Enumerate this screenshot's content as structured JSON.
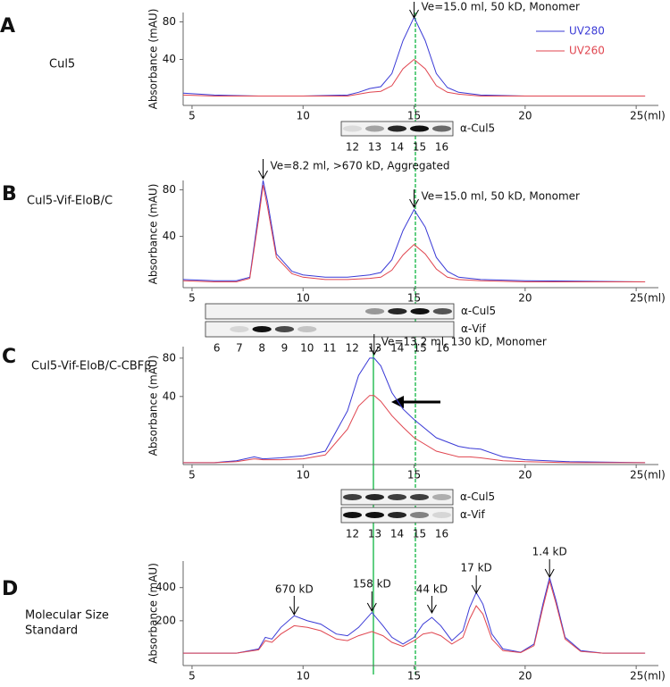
{
  "chart_data": [
    {
      "type": "line",
      "label": "A",
      "name": [
        "Cul5"
      ],
      "ylabel": "Absorbance (mAU)",
      "legend": "upper right",
      "x": [
        4.6,
        6,
        8,
        10,
        12,
        12.5,
        13,
        13.5,
        14,
        14.5,
        15,
        15.5,
        16,
        16.5,
        17,
        18,
        20,
        22,
        25.4
      ],
      "series": [
        {
          "name": "UV280",
          "color": "#3a3ad6",
          "values": [
            4,
            2,
            1,
            1,
            2,
            5,
            9,
            11,
            25,
            60,
            85,
            60,
            25,
            10,
            5,
            2,
            1,
            1,
            1
          ]
        },
        {
          "name": "UV260",
          "color": "#e0454f",
          "values": [
            2,
            1,
            1,
            1,
            1,
            3,
            5,
            6,
            12,
            30,
            40,
            30,
            12,
            5,
            3,
            1,
            1,
            1,
            1
          ]
        }
      ],
      "xlim": [
        4.6,
        26
      ],
      "xticks": [
        5,
        10,
        15,
        20,
        {
          "value": 25,
          "label": "25(ml)"
        }
      ],
      "ylim": [
        -9,
        90
      ],
      "yticks": [
        40,
        80
      ],
      "annotations": [
        {
          "text": "Ve=15.0 ml, 50 kD, Monomer",
          "x": 15
        }
      ],
      "blot": {
        "rows": [
          "α-Cul5"
        ],
        "lanes": [
          12,
          13,
          14,
          15,
          16
        ]
      }
    },
    {
      "type": "line",
      "label": "B",
      "name": [
        "Cul5-Vif-EloB/C"
      ],
      "ylabel": "Absorbance (mAU)",
      "x": [
        4.6,
        6,
        7,
        7.6,
        8,
        8.2,
        8.4,
        8.8,
        9.5,
        10,
        11,
        12,
        13,
        13.5,
        14,
        14.5,
        15,
        15.5,
        16,
        16.5,
        17,
        18,
        20,
        25.4
      ],
      "series": [
        {
          "name": "UV280",
          "color": "#3a3ad6",
          "values": [
            3,
            2,
            2,
            5,
            60,
            88,
            70,
            25,
            10,
            7,
            5,
            5,
            7,
            9,
            20,
            45,
            63,
            48,
            22,
            10,
            5,
            3,
            2,
            1
          ]
        },
        {
          "name": "UV260",
          "color": "#e0454f",
          "values": [
            2,
            1,
            1,
            4,
            55,
            84,
            65,
            22,
            8,
            5,
            3,
            3,
            4,
            5,
            11,
            24,
            33,
            25,
            12,
            5,
            3,
            2,
            1,
            1
          ]
        }
      ],
      "xlim": [
        4.6,
        26
      ],
      "xticks": [
        5,
        10,
        15,
        20,
        {
          "value": 25,
          "label": "25(ml)"
        }
      ],
      "ylim": [
        -4,
        88
      ],
      "yticks": [
        40,
        80
      ],
      "annotations": [
        {
          "text": "Ve=8.2 ml, >670 kD, Aggregated",
          "x": 8.2
        },
        {
          "text": "Ve=15.0 ml, 50 kD, Monomer",
          "x": 15
        }
      ],
      "blot": {
        "rows": [
          "α-Cul5",
          "α-Vif"
        ],
        "lanes": [
          6,
          7,
          8,
          9,
          10,
          11,
          12,
          13,
          14,
          15,
          16
        ]
      }
    },
    {
      "type": "line",
      "label": "C",
      "name": [
        "Cul5-Vif-EloB/C-CBFβ"
      ],
      "ylabel": "Absorbance (mAU)",
      "x": [
        4.6,
        6,
        7,
        7.8,
        8.2,
        9,
        10,
        11,
        12,
        12.5,
        13,
        13.2,
        13.5,
        14,
        14.5,
        15,
        16,
        17,
        17.5,
        18,
        19,
        20,
        22,
        25.4
      ],
      "series": [
        {
          "name": "UV280",
          "color": "#3a3ad6",
          "values": [
            -29,
            -29,
            -27,
            -23,
            -25,
            -24,
            -22,
            -17,
            25,
            62,
            80,
            80,
            72,
            44,
            27,
            16,
            -3,
            -12,
            -14,
            -15,
            -23,
            -26,
            -28,
            -29
          ]
        },
        {
          "name": "UV260",
          "color": "#e0454f",
          "values": [
            -29,
            -29,
            -28,
            -25,
            -26,
            -26,
            -25,
            -21,
            6,
            30,
            41,
            41,
            35,
            20,
            8,
            -3,
            -17,
            -23,
            -23,
            -24,
            -27,
            -28,
            -29,
            -29
          ]
        }
      ],
      "xlim": [
        4.6,
        26
      ],
      "xticks": [
        5,
        10,
        15,
        20,
        {
          "value": 25,
          "label": "25(ml)"
        }
      ],
      "ylim": [
        -31,
        92
      ],
      "yticks": [
        40,
        80
      ],
      "annotations": [
        {
          "text": "Ve=13.2 ml, 130 kD, Monomer",
          "x": 13.2
        }
      ],
      "blot": {
        "rows": [
          "α-Cul5",
          "α-Vif"
        ],
        "lanes": [
          12,
          13,
          14,
          15,
          16
        ]
      }
    },
    {
      "type": "line",
      "label": "D",
      "name": [
        "Molecular Size",
        "Standard"
      ],
      "ylabel": "Absorbance (mAU)",
      "x": [
        4.6,
        7,
        8,
        8.3,
        8.6,
        9,
        9.6,
        10.2,
        10.8,
        11.5,
        12,
        12.5,
        13.1,
        13.6,
        14,
        14.5,
        15,
        15.4,
        15.8,
        16.2,
        16.7,
        17.2,
        17.5,
        17.8,
        18.1,
        18.5,
        19,
        19.8,
        20.4,
        20.8,
        21.1,
        21.4,
        21.8,
        22.5,
        23.5,
        25.4
      ],
      "series": [
        {
          "name": "UV280",
          "color": "#3a3ad6",
          "values": [
            5,
            5,
            30,
            100,
            90,
            160,
            230,
            200,
            180,
            120,
            110,
            160,
            250,
            170,
            100,
            60,
            100,
            180,
            220,
            170,
            80,
            140,
            280,
            370,
            300,
            120,
            30,
            10,
            60,
            300,
            460,
            320,
            100,
            20,
            5,
            5
          ]
        },
        {
          "name": "UV260",
          "color": "#e0454f",
          "values": [
            5,
            5,
            25,
            80,
            70,
            120,
            170,
            160,
            140,
            90,
            80,
            110,
            135,
            110,
            70,
            45,
            80,
            120,
            130,
            110,
            60,
            100,
            210,
            290,
            240,
            90,
            20,
            8,
            50,
            280,
            440,
            300,
            90,
            15,
            5,
            5
          ]
        }
      ],
      "xlim": [
        4.6,
        26
      ],
      "xticks": [
        5,
        10,
        15,
        20,
        {
          "value": 25,
          "label": "25(ml)"
        }
      ],
      "ylim": [
        -70,
        560
      ],
      "yticks": [
        200,
        400
      ],
      "annotations": [
        {
          "text": "670 kD",
          "x": 9.6
        },
        {
          "text": "158 kD",
          "x": 13.1
        },
        {
          "text": "44 kD",
          "x": 15.8
        },
        {
          "text": "17 kD",
          "x": 17.8
        },
        {
          "text": "1.4 kD",
          "x": 21.1
        }
      ]
    }
  ]
}
